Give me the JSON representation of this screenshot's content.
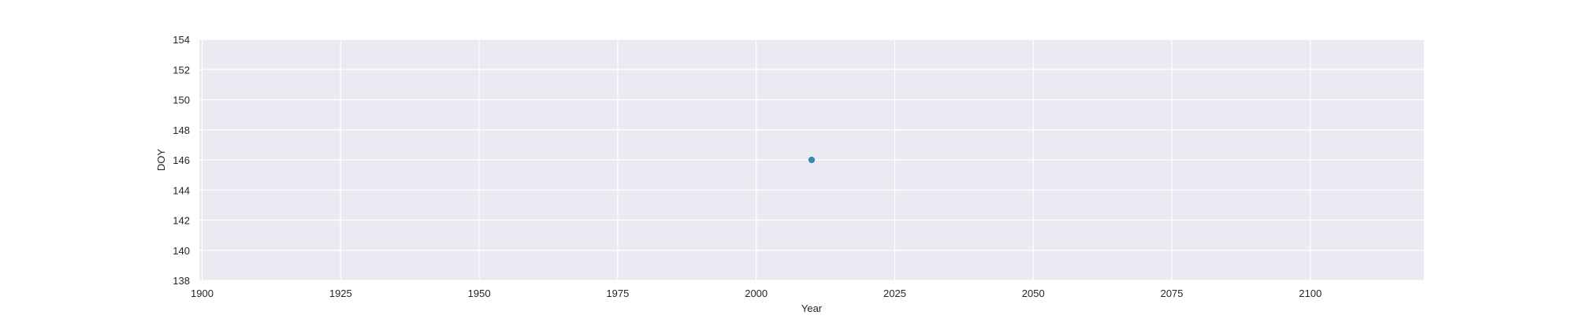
{
  "chart_data": {
    "type": "scatter",
    "title": "",
    "xlabel": "Year",
    "ylabel": "DOY",
    "xlim": [
      1899.5,
      2120.5
    ],
    "ylim": [
      138,
      154
    ],
    "xticks": [
      1900,
      1925,
      1950,
      1975,
      2000,
      2025,
      2050,
      2075,
      2100
    ],
    "yticks": [
      138,
      140,
      142,
      144,
      146,
      148,
      150,
      152,
      154
    ],
    "grid": true,
    "legend": "none",
    "series": [
      {
        "x": [
          2010
        ],
        "y": [
          146
        ],
        "color": "#3a86bd"
      }
    ],
    "colors": {
      "axes_background": "#eaeaf2",
      "grid": "#ffffff",
      "text": "#262626"
    }
  }
}
